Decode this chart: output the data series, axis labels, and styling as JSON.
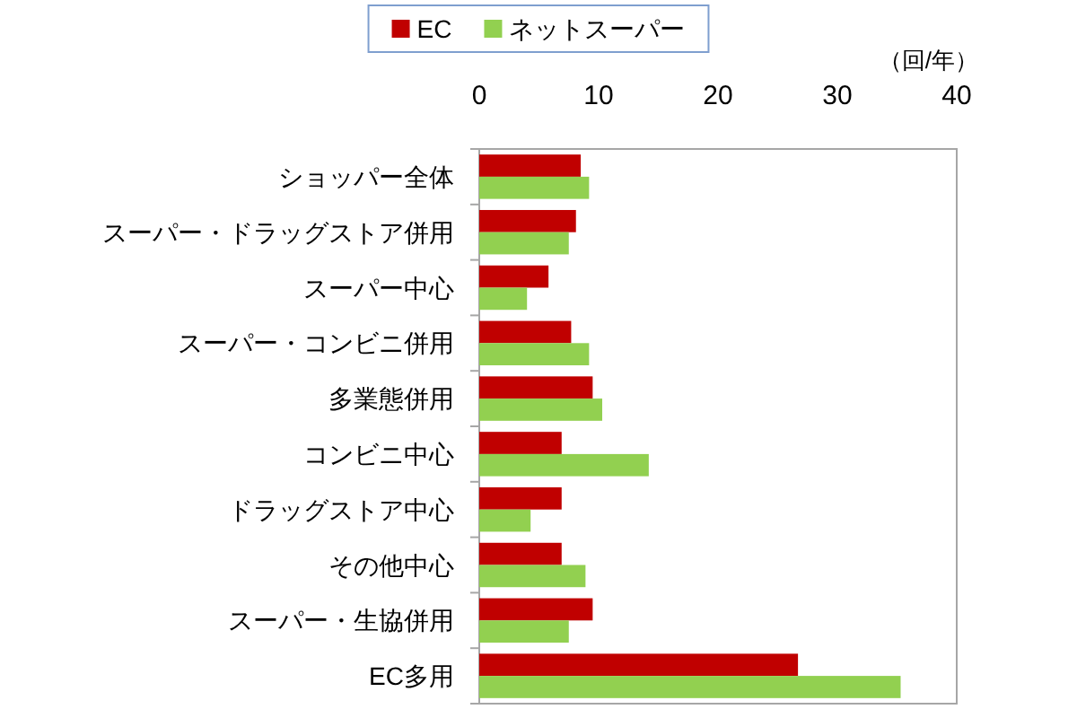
{
  "chart_data": {
    "type": "bar",
    "orientation": "horizontal",
    "xlabel": "（回/年）",
    "categories": [
      "ショッパー全体",
      "スーパー・ドラッグストア併用",
      "スーパー中心",
      "スーパー・コンビニ併用",
      "多業態併用",
      "コンビニ中心",
      "ドラッグストア中心",
      "その他中心",
      "スーパー・生協併用",
      "EC多用"
    ],
    "series": [
      {
        "name": "EC",
        "color": "#c00000",
        "values": [
          8.5,
          8.1,
          5.8,
          7.7,
          9.5,
          6.9,
          6.9,
          6.9,
          9.5,
          26.7
        ]
      },
      {
        "name": "ネットスーパー",
        "color": "#92d050",
        "values": [
          9.2,
          7.5,
          4.0,
          9.2,
          10.3,
          14.2,
          4.3,
          8.9,
          7.5,
          35.3
        ]
      }
    ],
    "xlim": [
      0,
      40
    ],
    "xticks": [
      0,
      10,
      20,
      30,
      40
    ],
    "grid": false,
    "legend": "top"
  }
}
